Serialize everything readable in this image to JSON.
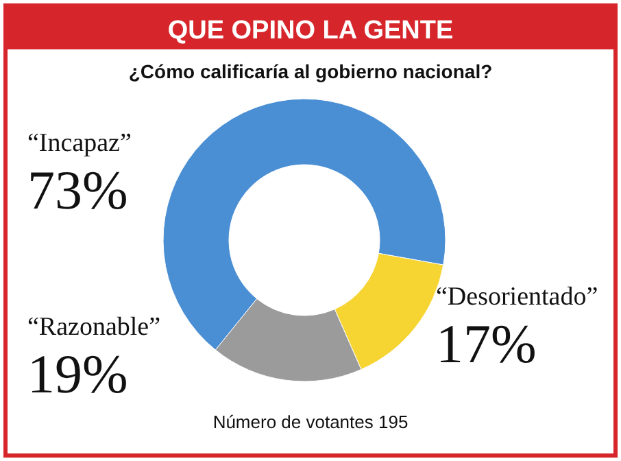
{
  "chart_data": {
    "type": "donut",
    "title": "QUE OPINO LA GENTE",
    "subtitle": "¿Cómo calificaría al gobierno nacional?",
    "categories": [
      "“Incapaz”",
      "“Desorientado”",
      "“Razonable”"
    ],
    "values": [
      73,
      17,
      19
    ],
    "colors": [
      "#4a8ed3",
      "#f6d432",
      "#9b9b9b"
    ],
    "value_labels": [
      "73%",
      "17%",
      "19%"
    ],
    "annotations": [
      "Número de votantes 195"
    ]
  }
}
